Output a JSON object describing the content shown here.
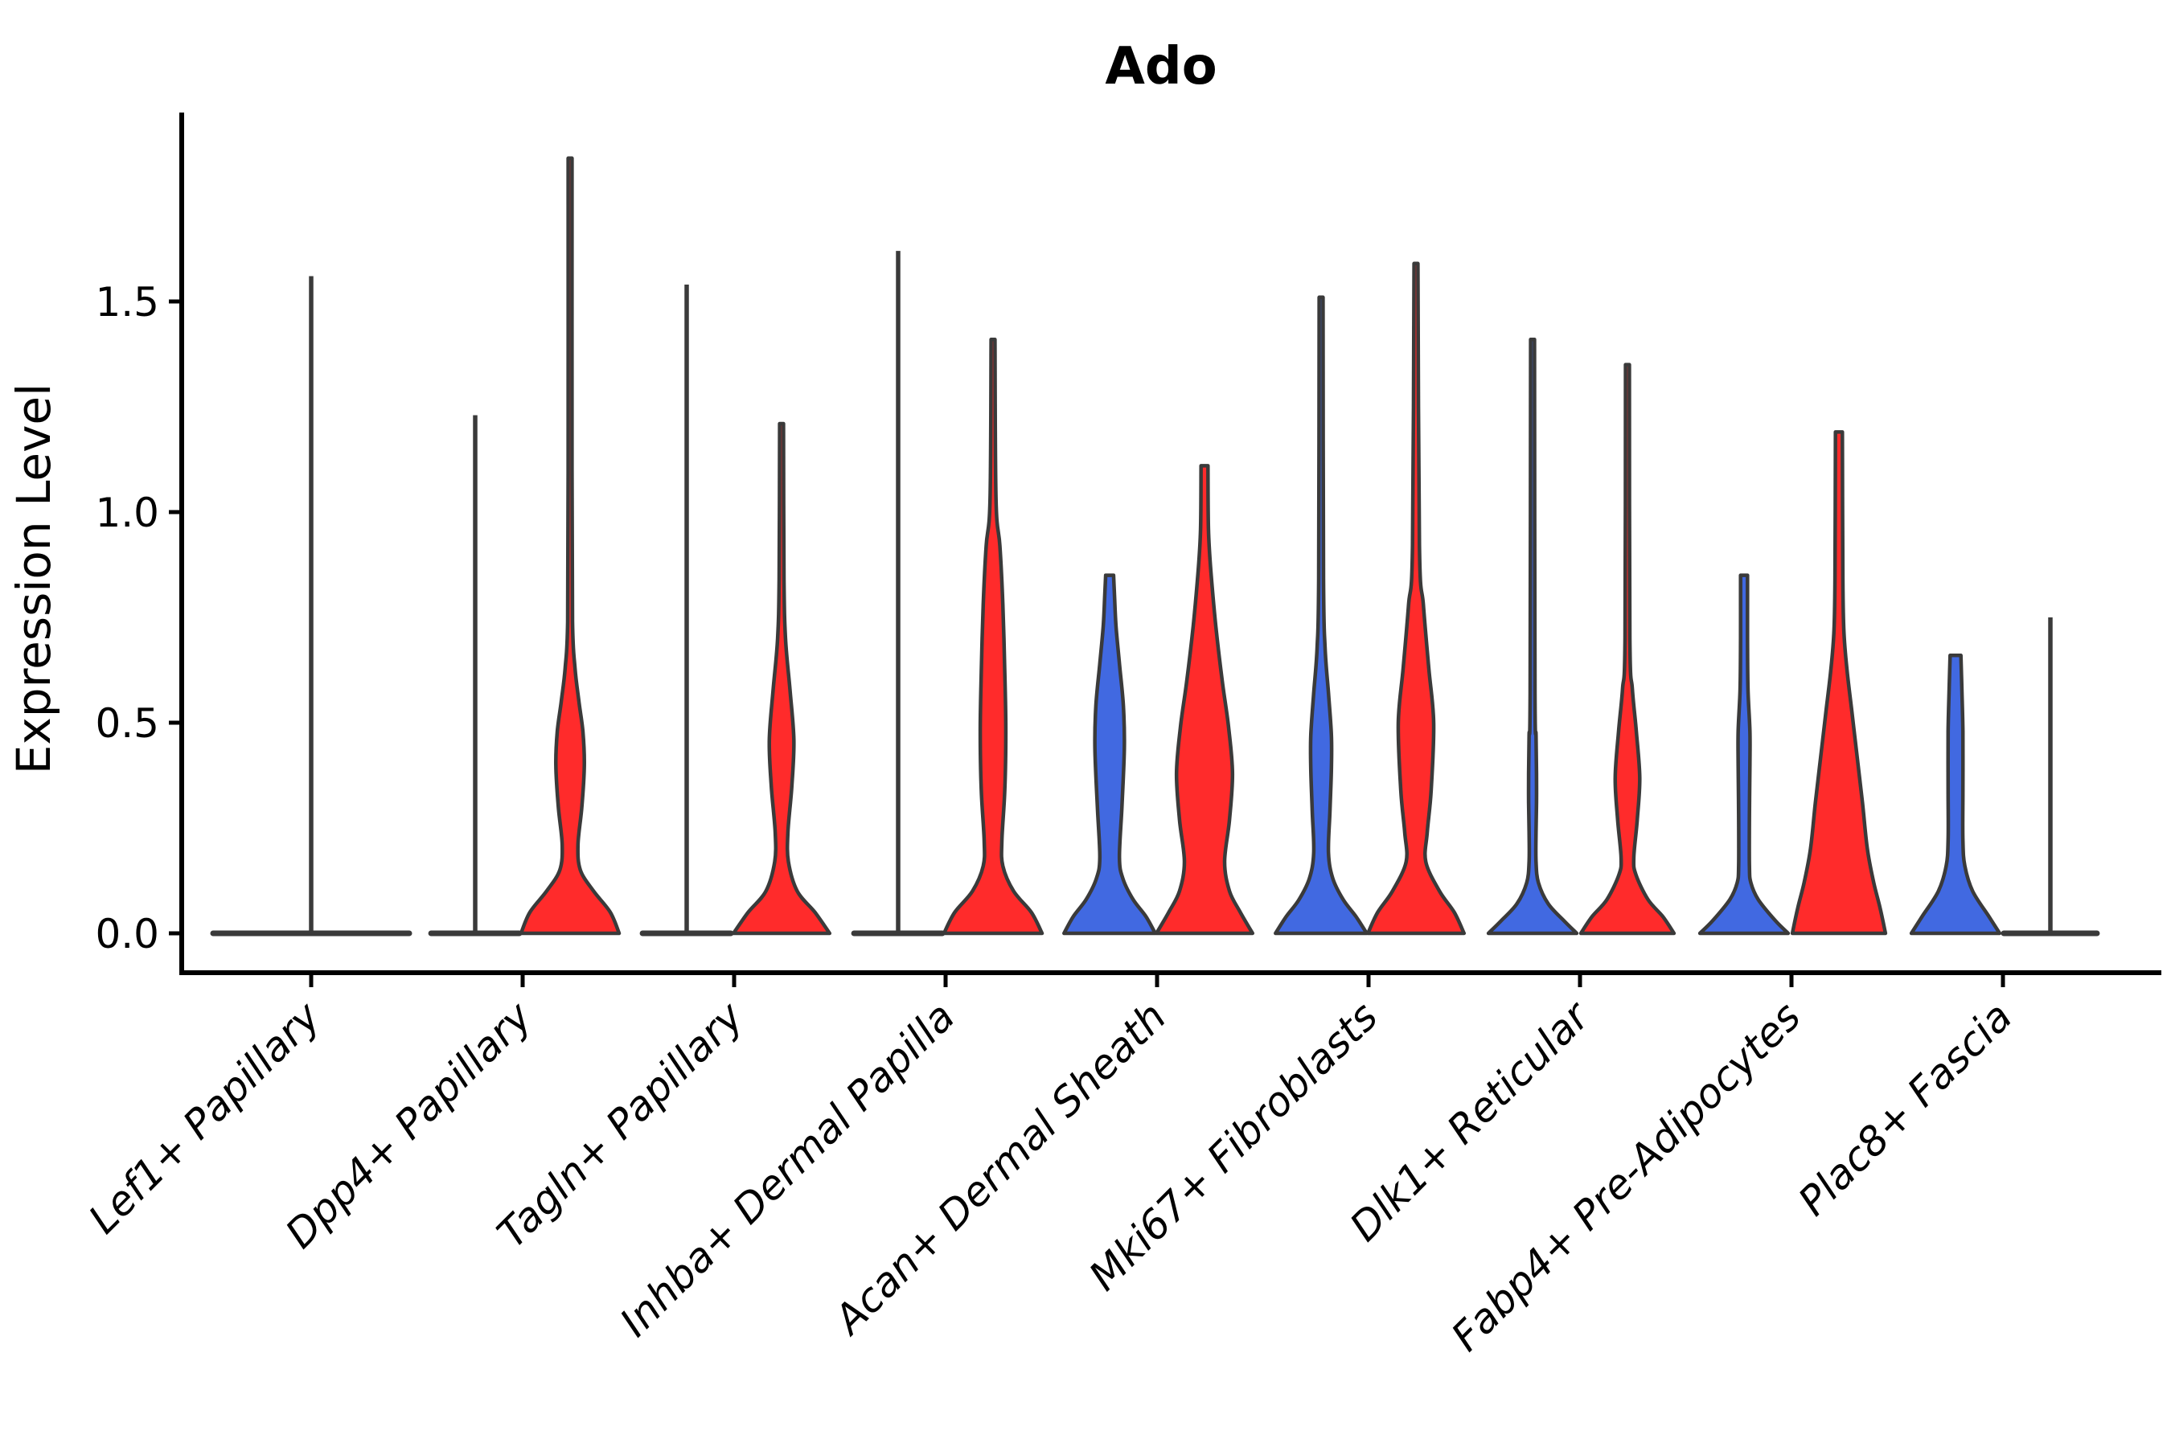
{
  "chart_data": {
    "type": "violin",
    "title": "Ado",
    "ylabel": "Expression Level",
    "xlabel": "",
    "ytick_labels": [
      "0.0",
      "0.5",
      "1.0",
      "1.5"
    ],
    "ytick_values": [
      0.0,
      0.5,
      1.0,
      1.5
    ],
    "ylim": [
      -0.09,
      1.95
    ],
    "grid": "off",
    "legend": "none",
    "style": "split violin, black open axes (left and bottom spines only), x labels rotated 45 degrees italic",
    "colors": {
      "blue_split": "#4169E1",
      "red_split": "#FF2B2B",
      "outline": "#3A3A3A",
      "background": "#FFFFFF",
      "text": "#000000"
    },
    "categories": [
      {
        "label": "Lef1+ Papillary",
        "violins": [
          {
            "split": "single",
            "fill": "none",
            "collapsed": true,
            "max_expression": 1.56,
            "offset": 0,
            "lens_halfwidth": 2.0
          }
        ]
      },
      {
        "label": "Dpp4+ Papillary",
        "violins": [
          {
            "split": "blue",
            "fill": "blue",
            "collapsed": true,
            "max_expression": 1.23,
            "offset": -1,
            "lens_halfwidth": 0.9
          },
          {
            "split": "red",
            "fill": "red",
            "collapsed": false,
            "max_expression": 1.84,
            "offset": 1,
            "profile": [
              [
                0,
                1.0
              ],
              [
                0.05,
                0.82
              ],
              [
                0.1,
                0.48
              ],
              [
                0.15,
                0.21
              ],
              [
                0.21,
                0.16
              ],
              [
                0.3,
                0.24
              ],
              [
                0.4,
                0.29
              ],
              [
                0.48,
                0.26
              ],
              [
                0.55,
                0.18
              ],
              [
                0.63,
                0.1
              ],
              [
                0.74,
                0.05
              ],
              [
                1.1,
                0.04
              ],
              [
                1.84,
                0.04
              ]
            ]
          }
        ]
      },
      {
        "label": "Tagln+ Papillary",
        "violins": [
          {
            "split": "blue",
            "fill": "blue",
            "collapsed": true,
            "max_expression": 1.54,
            "offset": -1,
            "lens_halfwidth": 0.9
          },
          {
            "split": "red",
            "fill": "red",
            "collapsed": false,
            "max_expression": 1.21,
            "offset": 1,
            "profile": [
              [
                0,
                0.98
              ],
              [
                0.05,
                0.68
              ],
              [
                0.1,
                0.32
              ],
              [
                0.17,
                0.14
              ],
              [
                0.24,
                0.13
              ],
              [
                0.35,
                0.21
              ],
              [
                0.46,
                0.25
              ],
              [
                0.58,
                0.17
              ],
              [
                0.7,
                0.08
              ],
              [
                0.84,
                0.05
              ],
              [
                1.21,
                0.04
              ]
            ]
          }
        ]
      },
      {
        "label": "Inhba+ Dermal Papilla",
        "violins": [
          {
            "split": "blue",
            "fill": "blue",
            "collapsed": true,
            "max_expression": 1.62,
            "offset": -1,
            "lens_halfwidth": 0.9
          },
          {
            "split": "red",
            "fill": "red",
            "collapsed": false,
            "max_expression": 1.41,
            "offset": 1,
            "profile": [
              [
                0,
                1.0
              ],
              [
                0.05,
                0.78
              ],
              [
                0.1,
                0.42
              ],
              [
                0.16,
                0.2
              ],
              [
                0.22,
                0.18
              ],
              [
                0.34,
                0.24
              ],
              [
                0.48,
                0.26
              ],
              [
                0.62,
                0.24
              ],
              [
                0.78,
                0.2
              ],
              [
                0.92,
                0.14
              ],
              [
                1.03,
                0.06
              ],
              [
                1.41,
                0.04
              ]
            ]
          }
        ]
      },
      {
        "label": "Acan+ Dermal Sheath",
        "violins": [
          {
            "split": "blue",
            "fill": "blue",
            "collapsed": false,
            "max_expression": 0.85,
            "offset": -1,
            "blunt_top": true,
            "profile": [
              [
                0,
                0.93
              ],
              [
                0.04,
                0.74
              ],
              [
                0.08,
                0.48
              ],
              [
                0.13,
                0.27
              ],
              [
                0.18,
                0.2
              ],
              [
                0.3,
                0.25
              ],
              [
                0.44,
                0.3
              ],
              [
                0.54,
                0.28
              ],
              [
                0.64,
                0.2
              ],
              [
                0.73,
                0.13
              ],
              [
                0.8,
                0.1
              ],
              [
                0.85,
                0.08
              ]
            ]
          },
          {
            "split": "red",
            "fill": "red",
            "collapsed": false,
            "max_expression": 1.11,
            "offset": 1,
            "profile": [
              [
                0,
                0.98
              ],
              [
                0.05,
                0.73
              ],
              [
                0.1,
                0.51
              ],
              [
                0.17,
                0.41
              ],
              [
                0.27,
                0.51
              ],
              [
                0.38,
                0.57
              ],
              [
                0.49,
                0.49
              ],
              [
                0.6,
                0.36
              ],
              [
                0.73,
                0.23
              ],
              [
                0.86,
                0.13
              ],
              [
                0.96,
                0.08
              ],
              [
                1.11,
                0.07
              ]
            ]
          }
        ]
      },
      {
        "label": "Mki67+ Fibroblasts",
        "violins": [
          {
            "split": "blue",
            "fill": "blue",
            "collapsed": false,
            "max_expression": 1.51,
            "offset": -1,
            "profile": [
              [
                0,
                0.93
              ],
              [
                0.04,
                0.71
              ],
              [
                0.08,
                0.45
              ],
              [
                0.13,
                0.24
              ],
              [
                0.19,
                0.15
              ],
              [
                0.29,
                0.18
              ],
              [
                0.39,
                0.21
              ],
              [
                0.47,
                0.21
              ],
              [
                0.57,
                0.15
              ],
              [
                0.68,
                0.08
              ],
              [
                0.84,
                0.05
              ],
              [
                1.51,
                0.04
              ]
            ]
          },
          {
            "split": "red",
            "fill": "red",
            "collapsed": false,
            "max_expression": 1.59,
            "offset": 1,
            "profile": [
              [
                0,
                0.98
              ],
              [
                0.05,
                0.78
              ],
              [
                0.1,
                0.48
              ],
              [
                0.17,
                0.2
              ],
              [
                0.24,
                0.23
              ],
              [
                0.34,
                0.31
              ],
              [
                0.5,
                0.36
              ],
              [
                0.63,
                0.26
              ],
              [
                0.78,
                0.15
              ],
              [
                0.92,
                0.07
              ],
              [
                1.59,
                0.04
              ]
            ]
          }
        ]
      },
      {
        "label": "Dlk1+ Reticular",
        "violins": [
          {
            "split": "blue",
            "fill": "blue",
            "collapsed": false,
            "max_expression": 1.41,
            "offset": -1,
            "profile": [
              [
                0,
                0.9
              ],
              [
                0.03,
                0.64
              ],
              [
                0.07,
                0.32
              ],
              [
                0.12,
                0.12
              ],
              [
                0.17,
                0.07
              ],
              [
                0.24,
                0.07
              ],
              [
                0.31,
                0.08
              ],
              [
                0.38,
                0.08
              ],
              [
                0.47,
                0.07
              ],
              [
                0.57,
                0.05
              ],
              [
                1.41,
                0.04
              ]
            ]
          },
          {
            "split": "red",
            "fill": "red",
            "collapsed": false,
            "max_expression": 1.35,
            "offset": 1,
            "profile": [
              [
                0,
                0.95
              ],
              [
                0.04,
                0.72
              ],
              [
                0.08,
                0.42
              ],
              [
                0.14,
                0.17
              ],
              [
                0.18,
                0.13
              ],
              [
                0.27,
                0.2
              ],
              [
                0.37,
                0.25
              ],
              [
                0.48,
                0.18
              ],
              [
                0.58,
                0.1
              ],
              [
                0.7,
                0.05
              ],
              [
                1.35,
                0.04
              ]
            ]
          }
        ]
      },
      {
        "label": "Fabp4+ Pre-Adipocytes",
        "violins": [
          {
            "split": "blue",
            "fill": "blue",
            "collapsed": false,
            "max_expression": 0.85,
            "offset": -1,
            "blunt_top": true,
            "profile": [
              [
                0,
                0.9
              ],
              [
                0.03,
                0.64
              ],
              [
                0.08,
                0.29
              ],
              [
                0.12,
                0.14
              ],
              [
                0.16,
                0.11
              ],
              [
                0.28,
                0.11
              ],
              [
                0.4,
                0.12
              ],
              [
                0.48,
                0.12
              ],
              [
                0.58,
                0.08
              ],
              [
                0.7,
                0.07
              ],
              [
                0.78,
                0.07
              ],
              [
                0.85,
                0.07
              ]
            ]
          },
          {
            "split": "red",
            "fill": "red",
            "collapsed": false,
            "max_expression": 1.19,
            "offset": 1,
            "profile": [
              [
                0,
                0.95
              ],
              [
                0.06,
                0.84
              ],
              [
                0.12,
                0.71
              ],
              [
                0.2,
                0.58
              ],
              [
                0.31,
                0.48
              ],
              [
                0.43,
                0.36
              ],
              [
                0.53,
                0.26
              ],
              [
                0.63,
                0.16
              ],
              [
                0.72,
                0.1
              ],
              [
                0.84,
                0.08
              ],
              [
                1.19,
                0.07
              ]
            ]
          }
        ]
      },
      {
        "label": "Plac8+ Fascia",
        "violins": [
          {
            "split": "blue",
            "fill": "blue",
            "collapsed": false,
            "max_expression": 0.66,
            "offset": -1,
            "blunt_top": true,
            "profile": [
              [
                0,
                0.9
              ],
              [
                0.04,
                0.68
              ],
              [
                0.1,
                0.35
              ],
              [
                0.16,
                0.19
              ],
              [
                0.22,
                0.15
              ],
              [
                0.34,
                0.15
              ],
              [
                0.48,
                0.15
              ],
              [
                0.58,
                0.13
              ],
              [
                0.66,
                0.11
              ]
            ]
          },
          {
            "split": "red",
            "fill": "red",
            "collapsed": true,
            "max_expression": 0.75,
            "offset": 1,
            "lens_halfwidth": 0.95
          }
        ]
      }
    ]
  }
}
